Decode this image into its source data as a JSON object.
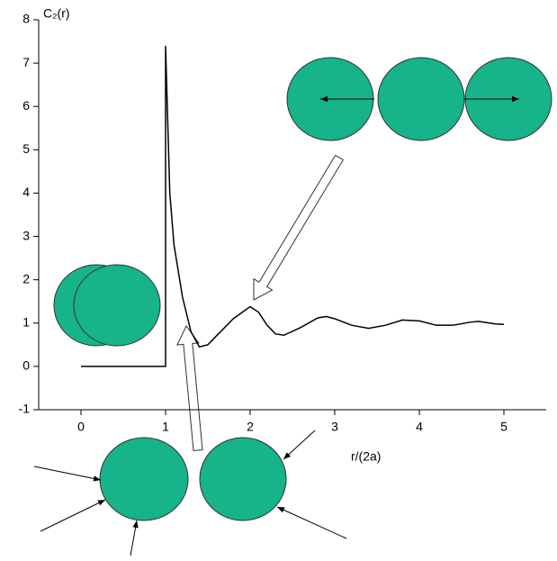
{
  "chart_data": {
    "type": "line",
    "x_label": "r/(2a)",
    "y_label": "C₂(r)",
    "x": [
      0,
      1,
      1,
      1.05,
      1.1,
      1.2,
      1.3,
      1.4,
      1.5,
      1.6,
      1.8,
      2.0,
      2.1,
      2.2,
      2.3,
      2.4,
      2.6,
      2.8,
      2.9,
      3.0,
      3.2,
      3.4,
      3.6,
      3.8,
      4.0,
      4.2,
      4.4,
      4.6,
      4.7,
      4.9,
      5.0
    ],
    "values": [
      0,
      0,
      7.4,
      4.0,
      2.8,
      1.6,
      0.8,
      0.45,
      0.5,
      0.7,
      1.1,
      1.38,
      1.25,
      0.95,
      0.75,
      0.72,
      0.9,
      1.12,
      1.15,
      1.1,
      0.95,
      0.88,
      0.95,
      1.07,
      1.05,
      0.95,
      0.95,
      1.02,
      1.04,
      0.98,
      0.97
    ],
    "color": "#000000",
    "xlim": [
      -0.5,
      5.5
    ],
    "ylim": [
      -1,
      8
    ],
    "xticks": [
      0,
      1,
      2,
      3,
      4,
      5
    ],
    "yticks": [
      -1,
      0,
      1,
      2,
      3,
      4,
      5,
      6,
      7,
      8
    ]
  }
}
